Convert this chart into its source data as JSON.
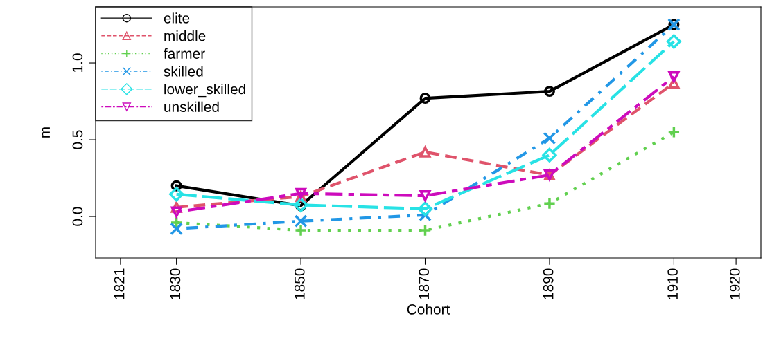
{
  "chart_data": {
    "type": "line",
    "xlabel": "Cohort",
    "ylabel": "m",
    "x": [
      1830,
      1850,
      1870,
      1890,
      1910
    ],
    "xlim": [
      1817,
      1924
    ],
    "xticks": [
      1821,
      1830,
      1850,
      1870,
      1890,
      1910,
      1920
    ],
    "ylim": [
      -0.27,
      1.365
    ],
    "yticks": [
      {
        "value": 0,
        "label": "0.0"
      },
      0.5,
      {
        "value": 1,
        "label": "1.0"
      }
    ],
    "grid": false,
    "legend": "top left",
    "series": [
      {
        "name": "elite",
        "color": "#000000",
        "marker": "circle",
        "line_style": "solid",
        "values": [
          0.2,
          0.07,
          0.77,
          0.815,
          1.25
        ]
      },
      {
        "name": "middle",
        "color": "#df536b",
        "marker": "triangle",
        "line_style": "dashed",
        "values": [
          0.06,
          0.13,
          0.42,
          0.27,
          0.87
        ]
      },
      {
        "name": "farmer",
        "color": "#61d04f",
        "marker": "plus",
        "line_style": "dotted",
        "values": [
          -0.04,
          -0.09,
          -0.09,
          0.085,
          0.55
        ]
      },
      {
        "name": "skilled",
        "color": "#2297e6",
        "marker": "cross",
        "line_style": "dashdot",
        "values": [
          -0.08,
          -0.03,
          0.01,
          0.51,
          1.25
        ]
      },
      {
        "name": "lower_skilled",
        "color": "#28e2e5",
        "marker": "diamond",
        "line_style": "longdash",
        "values": [
          0.145,
          0.075,
          0.05,
          0.4,
          1.14
        ]
      },
      {
        "name": "unskilled",
        "color": "#cd0bbc",
        "marker": "triangle_down",
        "line_style": "twodash",
        "values": [
          0.03,
          0.15,
          0.135,
          0.27,
          0.91
        ]
      }
    ]
  }
}
